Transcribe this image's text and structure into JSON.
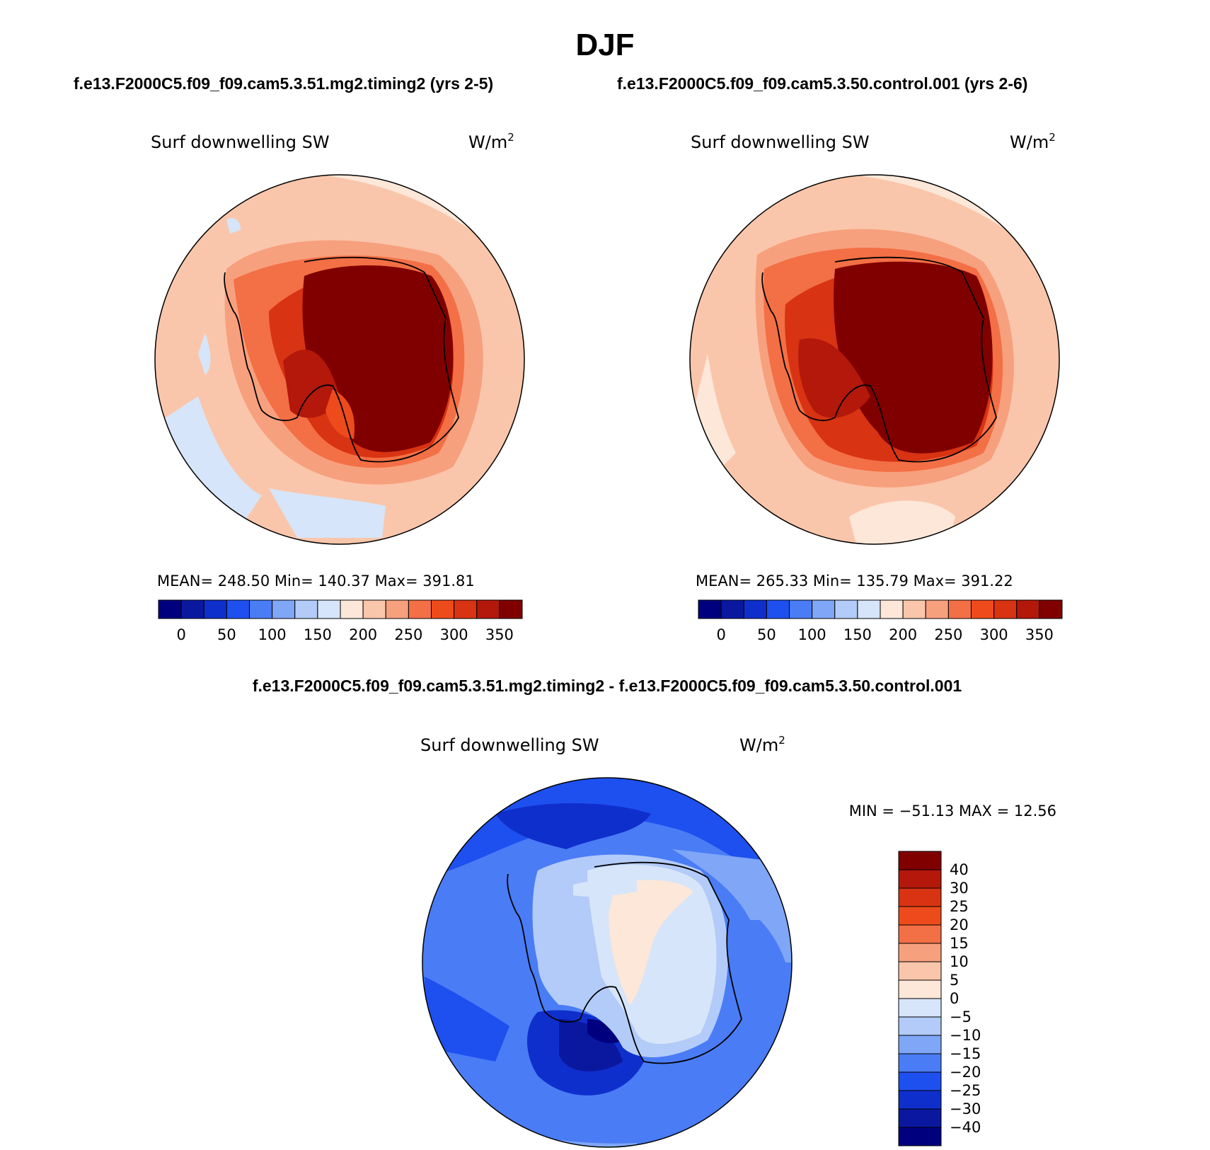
{
  "page_title": "DJF",
  "case_a_header": "f.e13.F2000C5.f09_f09.cam5.3.51.mg2.timing2 (yrs 2-5)",
  "case_b_header": "f.e13.F2000C5.f09_f09.cam5.3.50.control.001 (yrs 2-6)",
  "diff_header": "f.e13.F2000C5.f09_f09.cam5.3.51.mg2.timing2 - f.e13.F2000C5.f09_f09.cam5.3.50.control.001",
  "panels": [
    {
      "variable": "Surf downwelling SW",
      "units": "W/m",
      "units_sup": "2",
      "stats": "MEAN= 248.50   Min= 140.37   Max= 391.81",
      "field": "case-a"
    },
    {
      "variable": "Surf downwelling SW",
      "units": "W/m",
      "units_sup": "2",
      "stats": "MEAN= 265.33   Min= 135.79   Max= 391.22",
      "field": "case-b"
    },
    {
      "variable": "Surf downwelling SW",
      "units": "W/m",
      "units_sup": "2",
      "stats": "MIN = −51.13 MAX =  12.56",
      "field": "difference"
    }
  ],
  "abs_colorbar": {
    "colors": [
      "#00007f",
      "#0a18a0",
      "#0f2fcc",
      "#1e50f0",
      "#4a7cf5",
      "#7fa6f7",
      "#b2cbf8",
      "#d6e5f9",
      "#fce7d8",
      "#fac6ab",
      "#f7a07e",
      "#f36f45",
      "#ee4b1d",
      "#d83312",
      "#b3180b",
      "#800000"
    ],
    "labels": [
      "0",
      "50",
      "100",
      "150",
      "200",
      "250",
      "300",
      "350"
    ]
  },
  "diff_colorbar": {
    "colors": [
      "#00007f",
      "#0a18a0",
      "#0f2fcc",
      "#1e50f0",
      "#4a7cf5",
      "#7fa6f7",
      "#b2cbf8",
      "#d6e5f9",
      "#fce7d8",
      "#fac6ab",
      "#f7a07e",
      "#f36f45",
      "#ee4b1d",
      "#d83312",
      "#b3180b",
      "#800000"
    ],
    "labels": [
      "40",
      "30",
      "25",
      "20",
      "15",
      "10",
      "5",
      "0",
      "−5",
      "−10",
      "−15",
      "−20",
      "−25",
      "−30",
      "−40"
    ]
  }
}
